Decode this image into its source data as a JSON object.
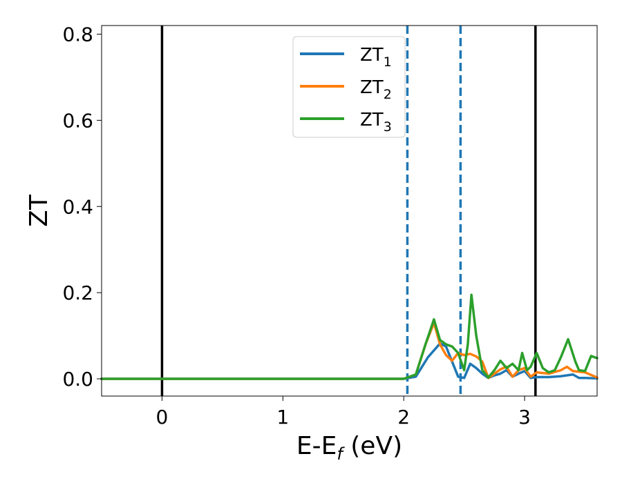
{
  "chart_data": {
    "type": "line",
    "title": "",
    "xlabel_main": "E-E",
    "xlabel_sub": "f",
    "xlabel_tail": " (eV)",
    "ylabel": "ZT",
    "xlim": [
      -0.5,
      3.6
    ],
    "ylim": [
      -0.04,
      0.82
    ],
    "x_ticks": [
      0,
      1,
      2,
      3
    ],
    "x_tick_labels": [
      "0",
      "1",
      "2",
      "3"
    ],
    "y_ticks": [
      0.0,
      0.2,
      0.4,
      0.6,
      0.8
    ],
    "y_tick_labels": [
      "0.0",
      "0.2",
      "0.4",
      "0.6",
      "0.8"
    ],
    "grid": false,
    "legend_position": "top-center",
    "vertical_lines": [
      {
        "x": 0.0,
        "style": "solid",
        "color": "#000000"
      },
      {
        "x": 3.09,
        "style": "solid",
        "color": "#000000"
      },
      {
        "x": 2.03,
        "style": "dashed",
        "color": "#1f77b4"
      },
      {
        "x": 2.47,
        "style": "dashed",
        "color": "#1f77b4"
      }
    ],
    "series": [
      {
        "name": "ZT",
        "sub": "1",
        "color": "#1f77b4",
        "x": [
          -0.5,
          2.0,
          2.1,
          2.2,
          2.3,
          2.35,
          2.4,
          2.45,
          2.5,
          2.55,
          2.6,
          2.65,
          2.7,
          2.75,
          2.8,
          2.85,
          2.9,
          2.95,
          3.0,
          3.05,
          3.1,
          3.2,
          3.3,
          3.4,
          3.45,
          3.5,
          3.6
        ],
        "y": [
          0.0,
          0.0,
          0.005,
          0.05,
          0.082,
          0.075,
          0.04,
          0.005,
          0.002,
          0.035,
          0.025,
          0.012,
          0.002,
          0.008,
          0.012,
          0.02,
          0.005,
          0.012,
          0.018,
          0.002,
          0.004,
          0.004,
          0.006,
          0.01,
          0.002,
          0.002,
          0.001
        ]
      },
      {
        "name": "ZT",
        "sub": "2",
        "color": "#ff7f0e",
        "x": [
          -0.5,
          2.0,
          2.1,
          2.18,
          2.25,
          2.3,
          2.35,
          2.4,
          2.45,
          2.5,
          2.55,
          2.6,
          2.65,
          2.7,
          2.75,
          2.8,
          2.85,
          2.9,
          2.95,
          3.0,
          3.05,
          3.1,
          3.2,
          3.3,
          3.35,
          3.4,
          3.5,
          3.6
        ],
        "y": [
          0.0,
          0.0,
          0.01,
          0.08,
          0.13,
          0.08,
          0.055,
          0.042,
          0.06,
          0.055,
          0.058,
          0.052,
          0.04,
          0.002,
          0.012,
          0.022,
          0.028,
          0.005,
          0.02,
          0.025,
          0.005,
          0.015,
          0.012,
          0.02,
          0.028,
          0.018,
          0.015,
          0.003
        ]
      },
      {
        "name": "ZT",
        "sub": "3",
        "color": "#2ca02c",
        "x": [
          -0.5,
          2.0,
          2.1,
          2.18,
          2.25,
          2.3,
          2.35,
          2.4,
          2.45,
          2.5,
          2.53,
          2.56,
          2.6,
          2.65,
          2.7,
          2.75,
          2.8,
          2.85,
          2.9,
          2.95,
          2.98,
          3.02,
          3.05,
          3.1,
          3.15,
          3.2,
          3.25,
          3.3,
          3.36,
          3.42,
          3.45,
          3.5,
          3.55,
          3.6
        ],
        "y": [
          0.0,
          0.0,
          0.01,
          0.08,
          0.138,
          0.09,
          0.08,
          0.075,
          0.06,
          0.02,
          0.08,
          0.195,
          0.1,
          0.02,
          0.003,
          0.02,
          0.042,
          0.025,
          0.035,
          0.02,
          0.06,
          0.02,
          0.028,
          0.06,
          0.025,
          0.015,
          0.02,
          0.05,
          0.092,
          0.04,
          0.02,
          0.018,
          0.053,
          0.048
        ]
      }
    ]
  }
}
